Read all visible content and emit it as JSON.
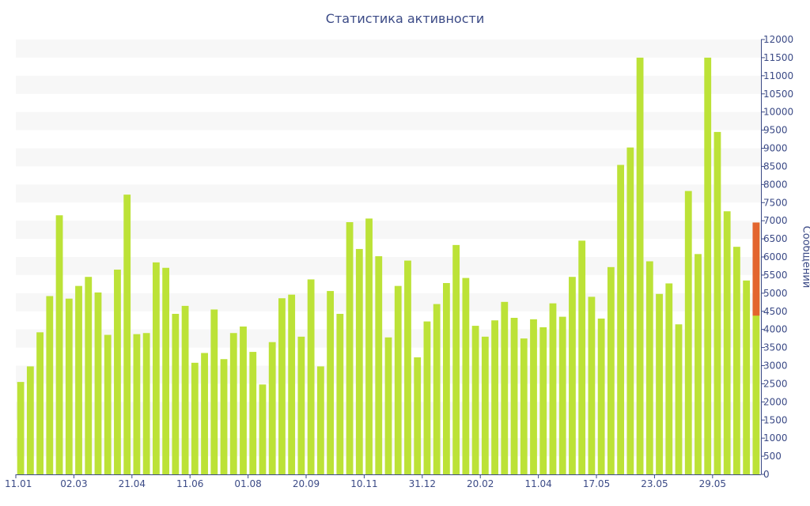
{
  "colors": {
    "bar": "#bce237",
    "highlight": "#e3652e",
    "band": "#f7f7f7",
    "axis": "#3b4a86",
    "text": "#3b4a86"
  },
  "chart_data": {
    "type": "bar",
    "title": "Статистика активности",
    "xlabel": "",
    "ylabel": "Сообщений",
    "ylim": [
      0,
      12000
    ],
    "y_ticks": [
      0,
      500,
      1000,
      1500,
      2000,
      2500,
      3000,
      3500,
      4000,
      4500,
      5000,
      5500,
      6000,
      6500,
      7000,
      7500,
      8000,
      8500,
      9000,
      9500,
      10000,
      10500,
      11000,
      11500,
      12000
    ],
    "x_tick_labels": [
      {
        "label": "11.01",
        "index": 0
      },
      {
        "label": "02.03",
        "index": 6
      },
      {
        "label": "21.04",
        "index": 12
      },
      {
        "label": "11.06",
        "index": 18
      },
      {
        "label": "01.08",
        "index": 24
      },
      {
        "label": "20.09",
        "index": 30
      },
      {
        "label": "10.11",
        "index": 36
      },
      {
        "label": "31.12",
        "index": 42
      },
      {
        "label": "20.02",
        "index": 48
      },
      {
        "label": "11.04",
        "index": 54
      },
      {
        "label": "17.05",
        "index": 60
      },
      {
        "label": "23.05",
        "index": 66
      },
      {
        "label": "29.05",
        "index": 72
      }
    ],
    "grid": "alternating horizontal bands",
    "values": [
      2550,
      2980,
      3920,
      4920,
      7150,
      4850,
      5200,
      5450,
      5020,
      3850,
      5650,
      7720,
      3870,
      3900,
      5850,
      5700,
      4430,
      4650,
      3080,
      3350,
      4550,
      3180,
      3900,
      4080,
      3380,
      2480,
      3650,
      4860,
      4960,
      3800,
      5380,
      2980,
      5060,
      4430,
      6960,
      6220,
      7060,
      6020,
      3780,
      5200,
      5900,
      3230,
      4220,
      4700,
      5280,
      6330,
      5420,
      4100,
      3800,
      4250,
      4760,
      4320,
      3750,
      4280,
      4060,
      4720,
      4350,
      5450,
      6450,
      4900,
      4300,
      5720,
      8540,
      9020,
      11500,
      5880,
      4980,
      5270,
      4140,
      7820,
      6080,
      11500,
      9450,
      7260,
      6280,
      5350,
      6950
    ],
    "highlight": {
      "index": 76,
      "from": 4380,
      "to": 6950
    }
  }
}
